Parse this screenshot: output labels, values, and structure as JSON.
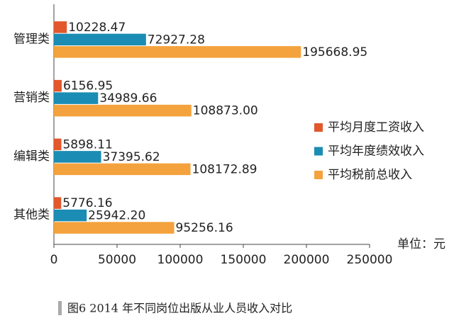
{
  "chart_data": {
    "type": "hbar",
    "categories": [
      "管理类",
      "营销类",
      "编辑类",
      "其他类"
    ],
    "series": [
      {
        "name": "平均月度工资收入",
        "color": "#e2572c",
        "values": [
          10228.47,
          6156.95,
          5898.11,
          5776.16
        ],
        "value_labels": [
          "10228.47",
          "6156.95",
          "5898.11",
          "5776.16"
        ]
      },
      {
        "name": "平均年度绩效收入",
        "color": "#1b8cb3",
        "values": [
          72927.28,
          34989.66,
          37395.62,
          25942.2
        ],
        "value_labels": [
          "72927.28",
          "34989.66",
          "37395.62",
          "25942.20"
        ]
      },
      {
        "name": "平均税前总收入",
        "color": "#f4a23d",
        "values": [
          195668.95,
          108873.0,
          108172.89,
          95256.16
        ],
        "value_labels": [
          "195668.95",
          "108873.00",
          "108172.89",
          "95256.16"
        ]
      }
    ],
    "xlim": [
      0,
      250000
    ],
    "xticks": [
      0,
      50000,
      100000,
      150000,
      200000,
      250000
    ],
    "unit": "单位：元",
    "caption": "图6 2014 年不同岗位出版从业人员收入对比",
    "legend": "right"
  }
}
